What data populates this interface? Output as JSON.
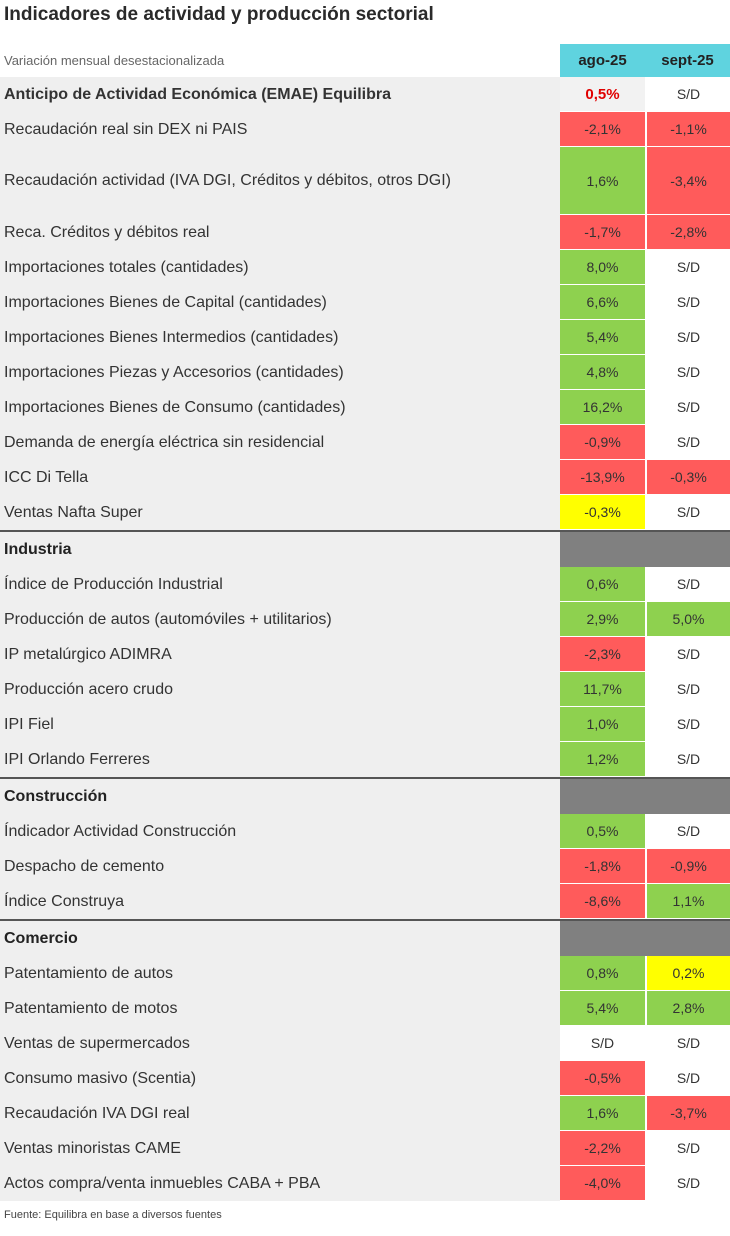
{
  "title": "Indicadores de actividad y producción sectorial",
  "subtitle": "Variación mensual desestacionalizada",
  "headers": [
    "ago-25",
    "sept-25"
  ],
  "rows": [
    {
      "label": "Anticipo de Actividad Económica (EMAE) Equilibra",
      "bold": true,
      "cells": [
        {
          "text": "0,5%",
          "fill": "#f2f2f2",
          "color": "#e00000"
        },
        {
          "text": "S/D",
          "fill": "#ffffff"
        }
      ]
    },
    {
      "label": "Recaudación real sin DEX ni PAIS",
      "cells": [
        {
          "text": "-2,1%",
          "fill": "#ff5b5b"
        },
        {
          "text": "-1,1%",
          "fill": "#ff5b5b"
        }
      ]
    },
    {
      "label": "Recaudación actividad (IVA DGI, Créditos y débitos, otros DGI)",
      "cells": [
        {
          "text": "1,6%",
          "fill": "#8ed14f"
        },
        {
          "text": "-3,4%",
          "fill": "#ff5b5b"
        }
      ]
    },
    {
      "label": "Reca. Créditos y débitos real",
      "cells": [
        {
          "text": "-1,7%",
          "fill": "#ff5b5b"
        },
        {
          "text": "-2,8%",
          "fill": "#ff5b5b"
        }
      ]
    },
    {
      "label": "Importaciones totales (cantidades)",
      "cells": [
        {
          "text": "8,0%",
          "fill": "#8ed14f"
        },
        {
          "text": "S/D",
          "fill": "#ffffff"
        }
      ]
    },
    {
      "label": "Importaciones Bienes de Capital (cantidades)",
      "cells": [
        {
          "text": "6,6%",
          "fill": "#8ed14f"
        },
        {
          "text": "S/D",
          "fill": "#ffffff"
        }
      ]
    },
    {
      "label": "Importaciones Bienes Intermedios (cantidades)",
      "cells": [
        {
          "text": "5,4%",
          "fill": "#8ed14f"
        },
        {
          "text": "S/D",
          "fill": "#ffffff"
        }
      ]
    },
    {
      "label": "Importaciones Piezas y Accesorios (cantidades)",
      "cells": [
        {
          "text": "4,8%",
          "fill": "#8ed14f"
        },
        {
          "text": "S/D",
          "fill": "#ffffff"
        }
      ]
    },
    {
      "label": "Importaciones Bienes de Consumo (cantidades)",
      "cells": [
        {
          "text": "16,2%",
          "fill": "#8ed14f"
        },
        {
          "text": "S/D",
          "fill": "#ffffff"
        }
      ]
    },
    {
      "label": "Demanda de energía eléctrica sin residencial",
      "cells": [
        {
          "text": "-0,9%",
          "fill": "#ff5b5b"
        },
        {
          "text": "S/D",
          "fill": "#ffffff"
        }
      ]
    },
    {
      "label": "ICC Di Tella",
      "cells": [
        {
          "text": "-13,9%",
          "fill": "#ff5b5b"
        },
        {
          "text": "-0,3%",
          "fill": "#ff5b5b"
        }
      ]
    },
    {
      "label": "Ventas Nafta Super",
      "cells": [
        {
          "text": "-0,3%",
          "fill": "#ffff00"
        },
        {
          "text": "S/D",
          "fill": "#ffffff"
        }
      ]
    },
    {
      "label": "Industria",
      "section": true
    },
    {
      "label": "Índice de Producción Industrial",
      "cells": [
        {
          "text": "0,6%",
          "fill": "#8ed14f"
        },
        {
          "text": "S/D",
          "fill": "#ffffff"
        }
      ]
    },
    {
      "label": "Producción de autos (automóviles + utilitarios)",
      "cells": [
        {
          "text": "2,9%",
          "fill": "#8ed14f"
        },
        {
          "text": "5,0%",
          "fill": "#8ed14f"
        }
      ]
    },
    {
      "label": "IP metalúrgico ADIMRA",
      "cells": [
        {
          "text": "-2,3%",
          "fill": "#ff5b5b"
        },
        {
          "text": "S/D",
          "fill": "#ffffff"
        }
      ]
    },
    {
      "label": "Producción acero crudo",
      "cells": [
        {
          "text": "11,7%",
          "fill": "#8ed14f"
        },
        {
          "text": "S/D",
          "fill": "#ffffff"
        }
      ]
    },
    {
      "label": "IPI Fiel",
      "cells": [
        {
          "text": "1,0%",
          "fill": "#8ed14f"
        },
        {
          "text": "S/D",
          "fill": "#ffffff"
        }
      ]
    },
    {
      "label": "IPI Orlando Ferreres",
      "cells": [
        {
          "text": "1,2%",
          "fill": "#8ed14f"
        },
        {
          "text": "S/D",
          "fill": "#ffffff"
        }
      ]
    },
    {
      "label": "Construcción",
      "section": true
    },
    {
      "label": "Índicador Actividad Construcción",
      "cells": [
        {
          "text": "0,5%",
          "fill": "#8ed14f"
        },
        {
          "text": "S/D",
          "fill": "#ffffff"
        }
      ]
    },
    {
      "label": "Despacho de cemento",
      "cells": [
        {
          "text": "-1,8%",
          "fill": "#ff5b5b"
        },
        {
          "text": "-0,9%",
          "fill": "#ff5b5b"
        }
      ]
    },
    {
      "label": "Índice Construya",
      "cells": [
        {
          "text": "-8,6%",
          "fill": "#ff5b5b"
        },
        {
          "text": "1,1%",
          "fill": "#8ed14f"
        }
      ]
    },
    {
      "label": "Comercio",
      "section": true
    },
    {
      "label": "Patentamiento de autos",
      "cells": [
        {
          "text": "0,8%",
          "fill": "#8ed14f"
        },
        {
          "text": "0,2%",
          "fill": "#ffff00"
        }
      ]
    },
    {
      "label": "Patentamiento de motos",
      "cells": [
        {
          "text": "5,4%",
          "fill": "#8ed14f"
        },
        {
          "text": "2,8%",
          "fill": "#8ed14f"
        }
      ]
    },
    {
      "label": "Ventas de supermercados",
      "cells": [
        {
          "text": "S/D",
          "fill": "#ffffff"
        },
        {
          "text": "S/D",
          "fill": "#ffffff"
        }
      ]
    },
    {
      "label": "Consumo masivo (Scentia)",
      "cells": [
        {
          "text": "-0,5%",
          "fill": "#ff5b5b"
        },
        {
          "text": "S/D",
          "fill": "#ffffff"
        }
      ]
    },
    {
      "label": "Recaudación IVA DGI real",
      "cells": [
        {
          "text": "1,6%",
          "fill": "#8ed14f"
        },
        {
          "text": "-3,7%",
          "fill": "#ff5b5b"
        }
      ]
    },
    {
      "label": "Ventas minoristas CAME",
      "cells": [
        {
          "text": "-2,2%",
          "fill": "#ff5b5b"
        },
        {
          "text": "S/D",
          "fill": "#ffffff"
        }
      ]
    },
    {
      "label": "Actos compra/venta inmuebles CABA + PBA",
      "cells": [
        {
          "text": "-4,0%",
          "fill": "#ff5b5b"
        },
        {
          "text": "S/D",
          "fill": "#ffffff"
        }
      ]
    }
  ],
  "footer": "Fuente: Equilibra en base a diversos fuentes"
}
